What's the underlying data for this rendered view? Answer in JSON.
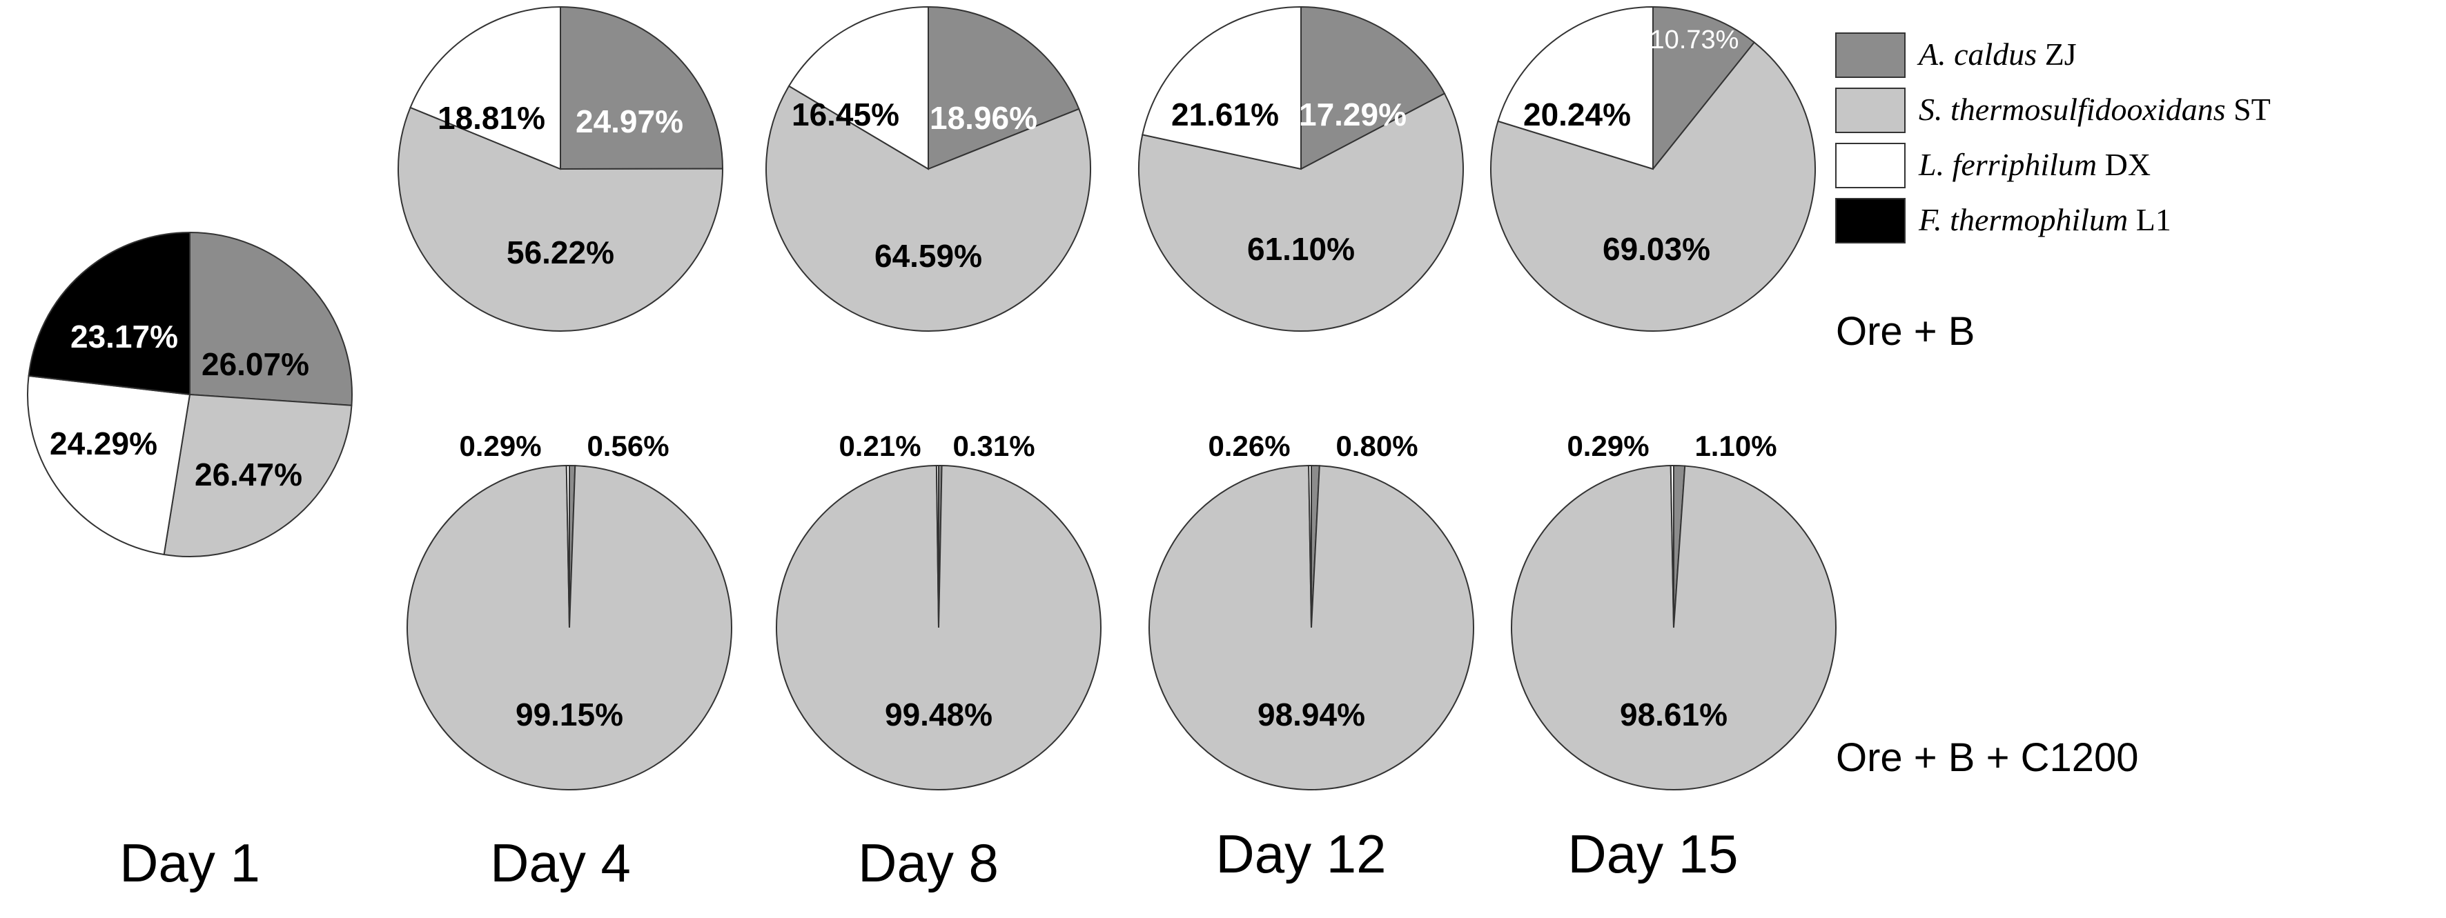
{
  "legend": [
    {
      "genus": "A. caldus",
      "strain": "ZJ",
      "color": "#8c8c8c"
    },
    {
      "genus": "S. thermosulfidooxidans",
      "strain": "ST",
      "color": "#c6c6c6"
    },
    {
      "genus": "L. ferriphilum",
      "strain": "DX",
      "color": "#ffffff"
    },
    {
      "genus": "F. thermophilum",
      "strain": "L1",
      "color": "#000000"
    }
  ],
  "group_labels": {
    "top": "Ore + B",
    "bottom": "Ore + B + C1200"
  },
  "day_labels": [
    "Day 1",
    "Day 4",
    "Day 8",
    "Day 12",
    "Day 15"
  ],
  "chart_data": [
    {
      "type": "pie",
      "day": "Day 1",
      "group": "shared",
      "values": [
        26.07,
        26.47,
        24.29,
        23.17
      ],
      "labels": [
        "26.07%",
        "26.47%",
        "24.29%",
        "23.17%"
      ]
    },
    {
      "type": "pie",
      "day": "Day 4",
      "group": "Ore + B",
      "values": [
        24.97,
        56.22,
        18.81
      ],
      "labels": [
        "24.97%",
        "56.22%",
        "18.81%"
      ]
    },
    {
      "type": "pie",
      "day": "Day 8",
      "group": "Ore + B",
      "values": [
        18.96,
        64.59,
        16.45
      ],
      "labels": [
        "18.96%",
        "64.59%",
        "16.45%"
      ]
    },
    {
      "type": "pie",
      "day": "Day 12",
      "group": "Ore + B",
      "values": [
        17.29,
        61.1,
        21.61
      ],
      "labels": [
        "17.29%",
        "61.10%",
        "21.61%"
      ]
    },
    {
      "type": "pie",
      "day": "Day 15",
      "group": "Ore + B",
      "values": [
        10.73,
        69.03,
        20.24
      ],
      "labels": [
        "10.73%",
        "69.03%",
        "20.24%"
      ]
    },
    {
      "type": "pie",
      "day": "Day 4",
      "group": "Ore + B + C1200",
      "values": [
        0.56,
        99.15,
        0.29
      ],
      "labels": [
        "0.56%",
        "99.15%",
        "0.29%"
      ]
    },
    {
      "type": "pie",
      "day": "Day 8",
      "group": "Ore + B + C1200",
      "values": [
        0.31,
        99.48,
        0.21
      ],
      "labels": [
        "0.31%",
        "99.48%",
        "0.21%"
      ]
    },
    {
      "type": "pie",
      "day": "Day 12",
      "group": "Ore + B + C1200",
      "values": [
        0.8,
        98.94,
        0.26
      ],
      "labels": [
        "0.80%",
        "98.94%",
        "0.26%"
      ]
    },
    {
      "type": "pie",
      "day": "Day 15",
      "group": "Ore + B + C1200",
      "values": [
        1.1,
        98.61,
        0.29
      ],
      "labels": [
        "1.10%",
        "98.61%",
        "0.29%"
      ]
    }
  ]
}
